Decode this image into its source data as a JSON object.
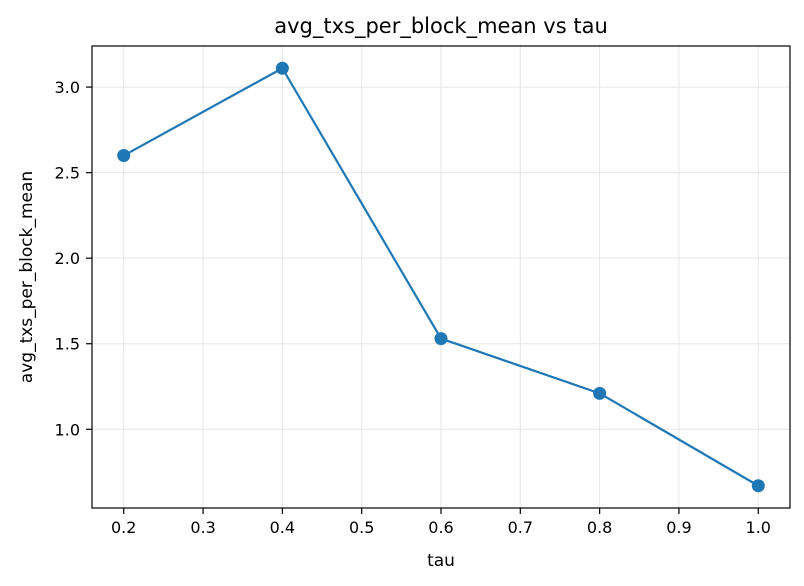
{
  "chart_data": {
    "type": "line",
    "title": "avg_txs_per_block_mean vs tau",
    "xlabel": "tau",
    "ylabel": "avg_txs_per_block_mean",
    "xlim": [
      0.16,
      1.04
    ],
    "ylim": [
      0.54,
      3.24
    ],
    "xticks": [
      0.2,
      0.3,
      0.4,
      0.5,
      0.6,
      0.7,
      0.8,
      0.9,
      1.0
    ],
    "xtick_labels": [
      "0.2",
      "0.3",
      "0.4",
      "0.5",
      "0.6",
      "0.7",
      "0.8",
      "0.9",
      "1.0"
    ],
    "yticks": [
      1.0,
      1.5,
      2.0,
      2.5,
      3.0
    ],
    "ytick_labels": [
      "1.0",
      "1.5",
      "2.0",
      "2.5",
      "3.0"
    ],
    "grid": true,
    "color": "#1f77b4",
    "x": [
      0.2,
      0.4,
      0.6,
      0.8,
      1.0
    ],
    "y": [
      2.6,
      3.11,
      1.53,
      1.21,
      0.67
    ]
  }
}
